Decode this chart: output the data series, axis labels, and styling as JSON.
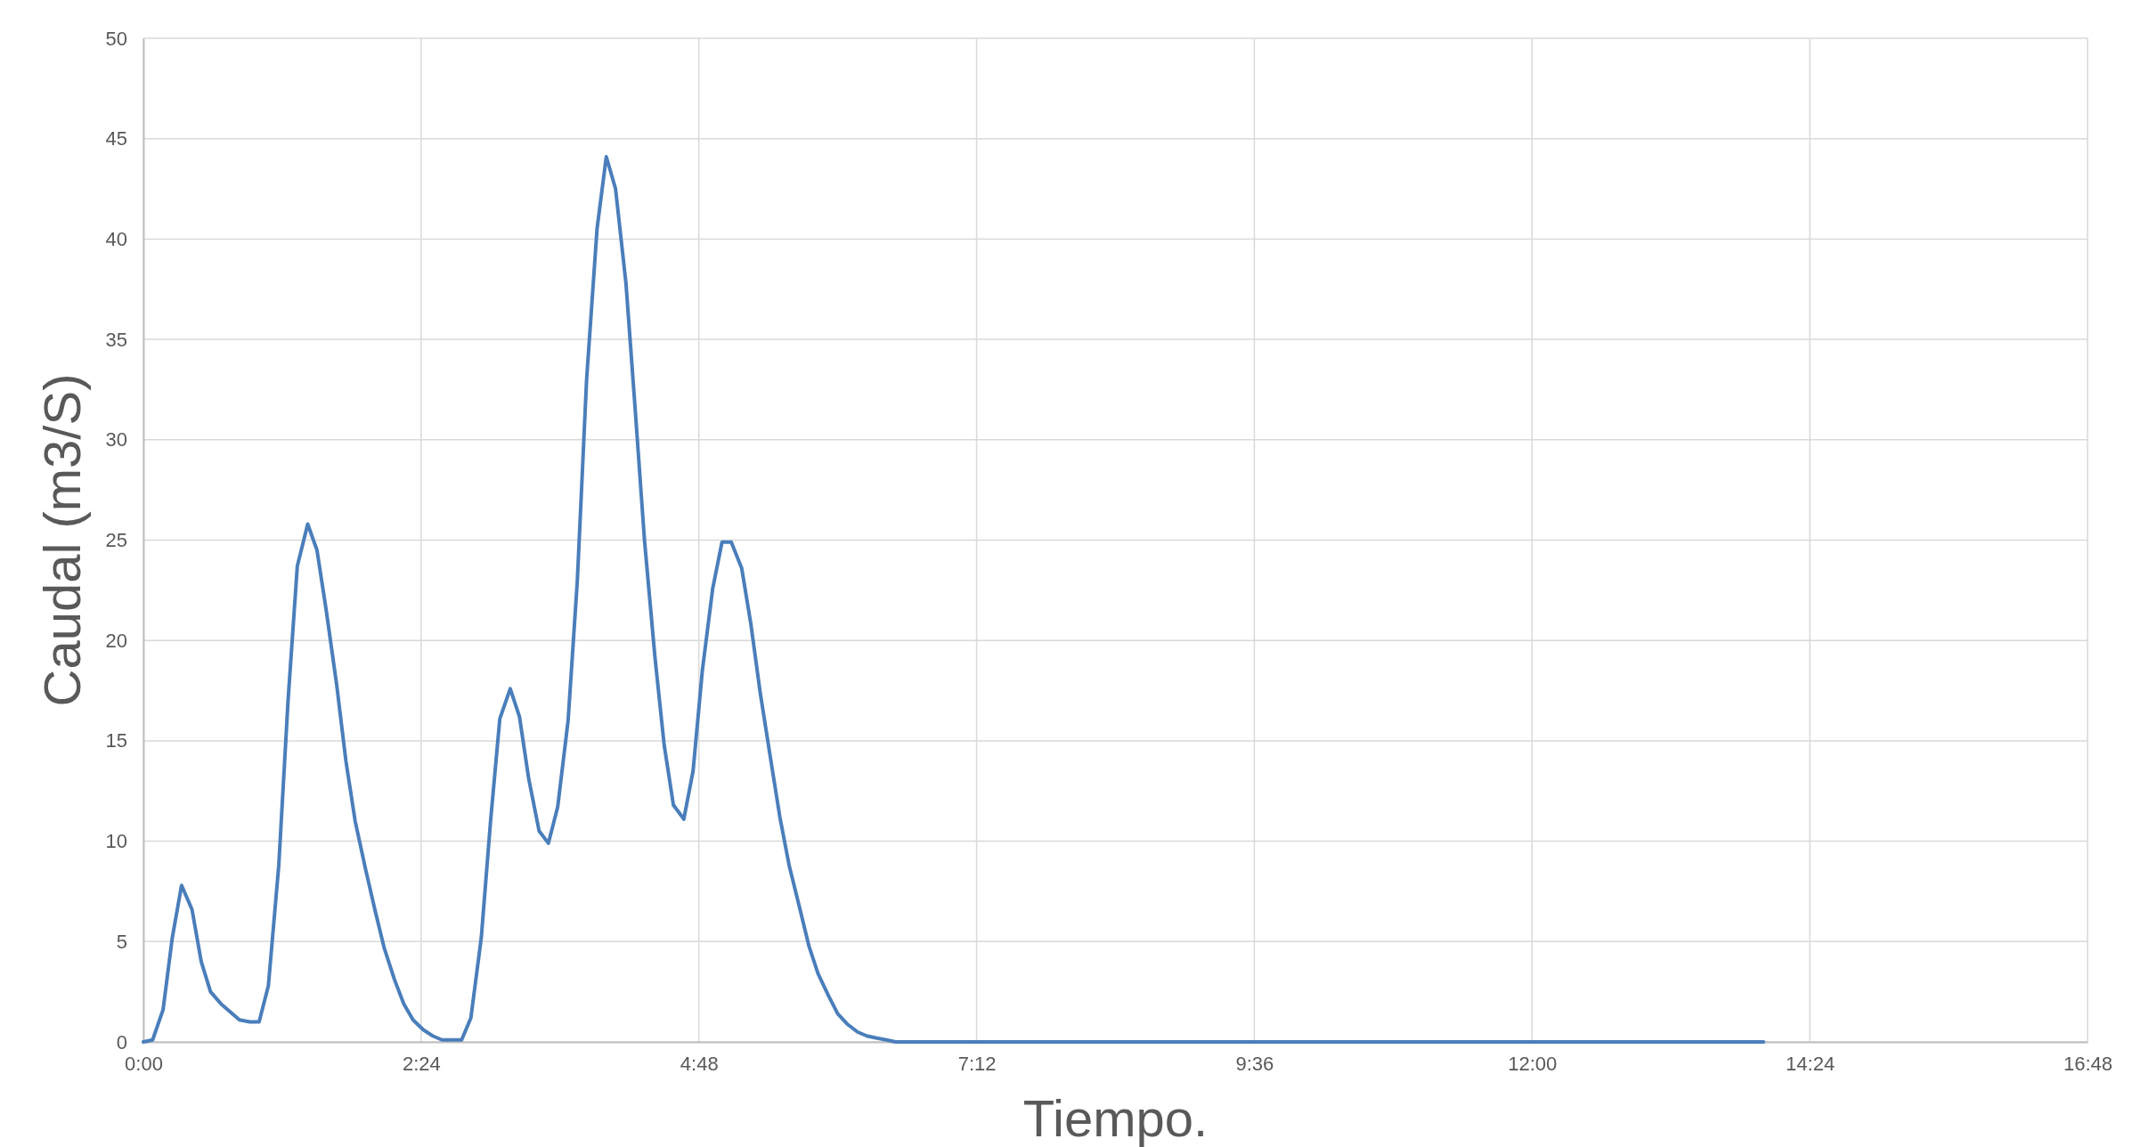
{
  "chart_data": {
    "type": "line",
    "xlabel": "Tiempo.",
    "ylabel": "Caudal (m3/S)",
    "x": [
      0,
      0.08,
      0.17,
      0.25,
      0.33,
      0.42,
      0.5,
      0.58,
      0.67,
      0.75,
      0.83,
      0.92,
      1,
      1.08,
      1.17,
      1.25,
      1.33,
      1.42,
      1.5,
      1.58,
      1.67,
      1.75,
      1.83,
      1.92,
      2,
      2.08,
      2.17,
      2.25,
      2.33,
      2.42,
      2.5,
      2.58,
      2.67,
      2.75,
      2.83,
      2.92,
      3,
      3.08,
      3.17,
      3.25,
      3.33,
      3.42,
      3.5,
      3.58,
      3.67,
      3.75,
      3.83,
      3.92,
      4,
      4.08,
      4.17,
      4.25,
      4.33,
      4.42,
      4.5,
      4.58,
      4.67,
      4.75,
      4.83,
      4.92,
      5,
      5.08,
      5.17,
      5.25,
      5.33,
      5.42,
      5.5,
      5.58,
      5.67,
      5.75,
      5.83,
      5.92,
      6,
      6.08,
      6.17,
      6.25,
      6.33,
      6.42,
      6.5,
      14.0
    ],
    "series": [
      {
        "color": "#4a7ebb",
        "values": [
          0,
          0.1,
          1.6,
          5.2,
          7.8,
          6.6,
          4.0,
          2.5,
          1.9,
          1.5,
          1.1,
          1.0,
          1.0,
          2.8,
          8.8,
          17.0,
          23.7,
          25.8,
          24.5,
          21.5,
          17.8,
          14.0,
          11.0,
          8.6,
          6.6,
          4.7,
          3.1,
          1.9,
          1.1,
          0.6,
          0.3,
          0.1,
          0.1,
          0.1,
          1.2,
          5.2,
          11.0,
          16.1,
          17.6,
          16.2,
          13.1,
          10.5,
          9.9,
          11.7,
          16.0,
          23.0,
          33.0,
          40.5,
          44.1,
          42.5,
          37.8,
          31.5,
          25.0,
          19.2,
          14.8,
          11.8,
          11.1,
          13.5,
          18.5,
          22.6,
          24.9,
          24.9,
          23.6,
          20.8,
          17.4,
          14.1,
          11.2,
          8.8,
          6.7,
          4.8,
          3.4,
          2.3,
          1.4,
          0.9,
          0.5,
          0.3,
          0.2,
          0.1,
          0,
          0
        ]
      }
    ],
    "xlim": [
      0,
      16.8
    ],
    "xticks": [
      {
        "value": 0,
        "label": "0:00"
      },
      {
        "value": 2.4,
        "label": "2:24"
      },
      {
        "value": 4.8,
        "label": "4:48"
      },
      {
        "value": 7.2,
        "label": "7:12"
      },
      {
        "value": 9.6,
        "label": "9:36"
      },
      {
        "value": 12,
        "label": "12:00"
      },
      {
        "value": 14.4,
        "label": "14:24"
      },
      {
        "value": 16.8,
        "label": "16:48"
      }
    ],
    "ylim": [
      0,
      50
    ],
    "yticks": [
      0,
      5,
      10,
      15,
      20,
      25,
      30,
      35,
      40,
      45,
      50
    ],
    "grid": true,
    "marker": "none",
    "line_style": "solid"
  }
}
